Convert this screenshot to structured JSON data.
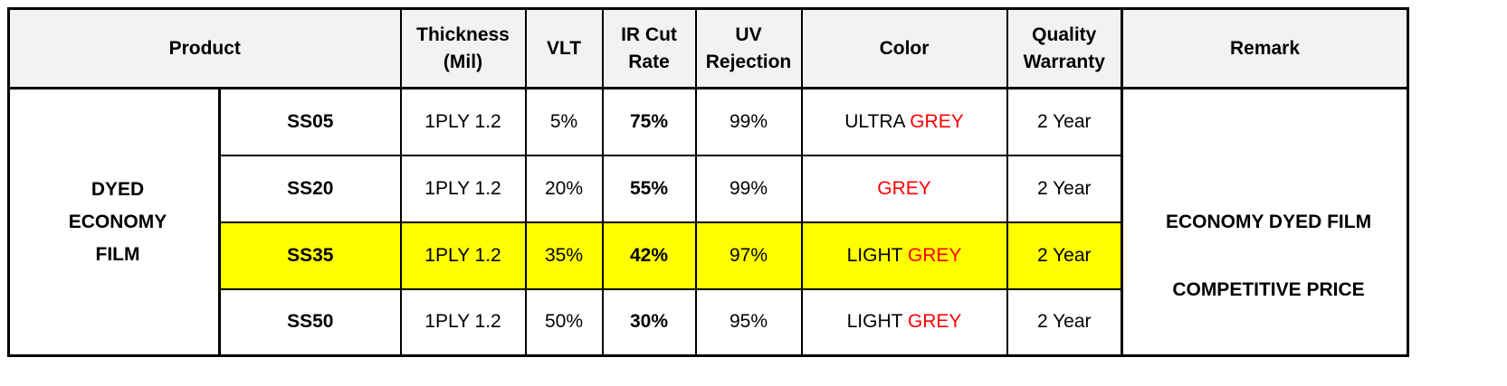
{
  "header": {
    "product": "Product",
    "thickness": [
      "Thickness",
      "(Mil)"
    ],
    "vlt": "VLT",
    "ir": [
      "IR Cut",
      "Rate"
    ],
    "uv": [
      "UV",
      "Rejection"
    ],
    "color": "Color",
    "warranty": [
      "Quality",
      "Warranty"
    ],
    "remark": "Remark"
  },
  "series_label": [
    "DYED",
    "ECONOMY",
    "FILM"
  ],
  "rows": [
    {
      "model": "SS05",
      "thickness": "1PLY 1.2",
      "vlt": "5%",
      "ir": "75%",
      "uv": "99%",
      "color_prefix": "ULTRA ",
      "color_main": "GREY",
      "warranty": "2 Year"
    },
    {
      "model": "SS20",
      "thickness": "1PLY 1.2",
      "vlt": "20%",
      "ir": "55%",
      "uv": "99%",
      "color_prefix": "",
      "color_main": "GREY",
      "warranty": "2 Year"
    },
    {
      "model": "SS35",
      "thickness": "1PLY 1.2",
      "vlt": "35%",
      "ir": "42%",
      "uv": "97%",
      "color_prefix": "LIGHT ",
      "color_main": "GREY",
      "warranty": "2 Year"
    },
    {
      "model": "SS50",
      "thickness": "1PLY 1.2",
      "vlt": "50%",
      "ir": "30%",
      "uv": "95%",
      "color_prefix": "LIGHT ",
      "color_main": "GREY",
      "warranty": "2 Year"
    }
  ],
  "remark_lines": [
    "ECONOMY DYED FILM",
    "COMPETITIVE PRICE"
  ],
  "colors": {
    "header_text": "#c0001a",
    "red": "#ff0000",
    "ir_text": "#9c3a12",
    "highlight": "#ffff00",
    "header_bg": "#f2f2f2"
  },
  "highlighted_row": "SS35"
}
